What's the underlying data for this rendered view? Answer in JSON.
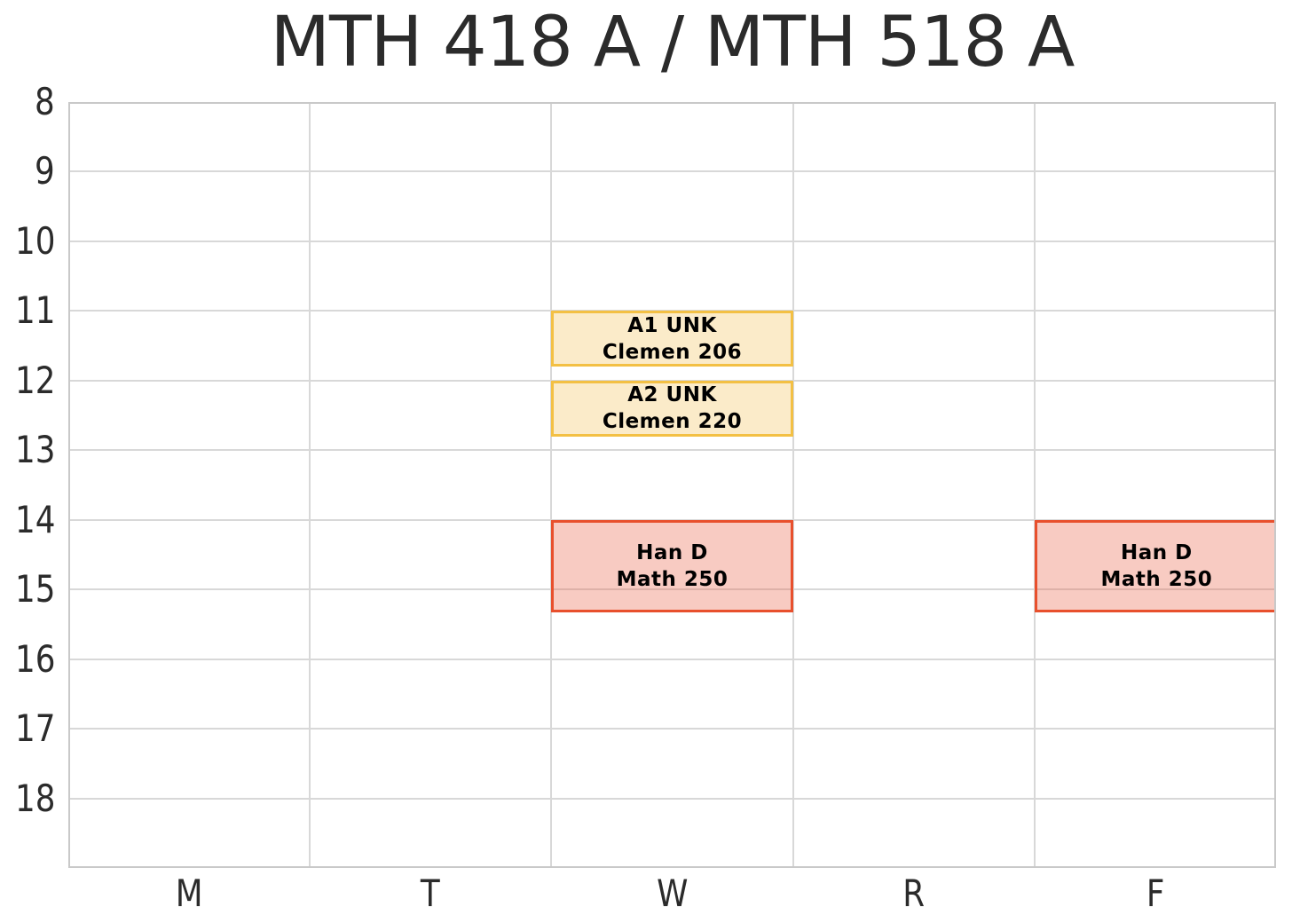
{
  "title": "MTH 418 A / MTH 518 A",
  "colors": {
    "text": "#2b2b2b",
    "grid": "#d8d8d8",
    "spine": "#c9c9c9",
    "event_text": "#000000",
    "yellow_fill": "rgba(243,195,92,0.33)",
    "yellow_border": "#f3c044",
    "red_fill": "rgba(235,106,81,0.35)",
    "red_border": "#e8502d"
  },
  "chart_data": {
    "type": "schedule",
    "title": "MTH 418 A / MTH 518 A",
    "x_axis": {
      "label": "",
      "ticks": [
        "M",
        "T",
        "W",
        "R",
        "F"
      ]
    },
    "y_axis": {
      "label": "",
      "ticks": [
        "8",
        "9",
        "10",
        "11",
        "12",
        "13",
        "14",
        "15",
        "16",
        "17",
        "18"
      ],
      "range": [
        8,
        19
      ],
      "unit": "hour of day"
    },
    "grid": true,
    "legend": false,
    "events": [
      {
        "day": "W",
        "start_hour": 11.0,
        "end_hour": 11.8,
        "label_line1": "A1 UNK",
        "label_line2": "Clemen 206",
        "color_key": "yellow"
      },
      {
        "day": "W",
        "start_hour": 12.0,
        "end_hour": 12.8,
        "label_line1": "A2 UNK",
        "label_line2": "Clemen 220",
        "color_key": "yellow"
      },
      {
        "day": "W",
        "start_hour": 14.0,
        "end_hour": 15.33,
        "label_line1": "Han D",
        "label_line2": "Math 250",
        "color_key": "red"
      },
      {
        "day": "F",
        "start_hour": 14.0,
        "end_hour": 15.33,
        "label_line1": "Han D",
        "label_line2": "Math 250",
        "color_key": "red",
        "clipped_right": true
      }
    ]
  }
}
